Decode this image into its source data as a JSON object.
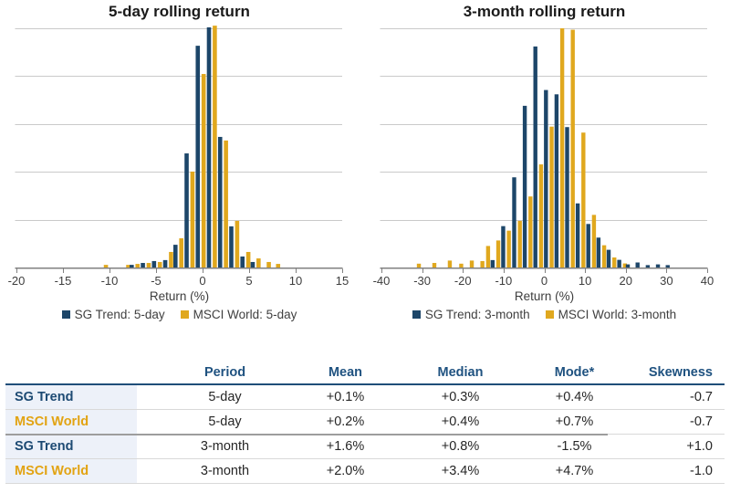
{
  "colors": {
    "navy": "#1d4669",
    "gold": "#e0a81e",
    "grid": "#cacaca",
    "axis": "#808080",
    "tick_text": "#3d3d3d",
    "title_text": "#1a1a1a",
    "table_header_text": "#1f5280",
    "header_rule": "#1f4e79",
    "row_label_bg": "#edf1f9",
    "row_border": "#d9d9d9",
    "group_divider": "#9d9d9d"
  },
  "chart_data": [
    {
      "type": "bar",
      "title": "5-day rolling return",
      "xlabel": "Return (%)",
      "ylabel": "",
      "y_axis_labels": "none",
      "y_note": "relative frequency, bar heights in % of plot height (no y tick labels shown)",
      "xlim": [
        -20,
        15
      ],
      "ylim": [
        0,
        100
      ],
      "x_ticks": [
        -20,
        -15,
        -10,
        -5,
        0,
        5,
        10,
        15
      ],
      "gridlines": 5,
      "legend_position": "bottom",
      "x": [
        -10.7,
        -8.3,
        -7.3,
        -6.1,
        -4.9,
        -3.7,
        -2.6,
        -1.4,
        -0.2,
        1.0,
        2.2,
        3.4,
        4.6,
        5.7,
        6.8,
        7.8
      ],
      "series": [
        {
          "name": "SG Trend: 5-day",
          "color": "#1d4669",
          "values": [
            0,
            0,
            1.1,
            1.9,
            2.7,
            3.1,
            9.5,
            47.7,
            92.7,
            100.4,
            54.6,
            17.2,
            4.6,
            2.3,
            0,
            0
          ]
        },
        {
          "name": "MSCI World: 5-day",
          "color": "#e0a81e",
          "values": [
            1.1,
            1.1,
            1.5,
            1.9,
            2.3,
            6.5,
            12.2,
            40.1,
            80.9,
            101.1,
            53.1,
            19.5,
            6.5,
            3.8,
            2.3,
            1.5
          ]
        }
      ]
    },
    {
      "type": "bar",
      "title": "3-month rolling return",
      "xlabel": "Return (%)",
      "ylabel": "",
      "y_axis_labels": "none",
      "y_note": "relative frequency, bar heights in % of plot height (no y tick labels shown)",
      "xlim": [
        -40,
        40
      ],
      "ylim": [
        0,
        100
      ],
      "x_ticks": [
        -40,
        -30,
        -20,
        -10,
        0,
        10,
        20,
        30,
        40
      ],
      "gridlines": 5,
      "legend_position": "bottom",
      "x": [
        -31.5,
        -27.7,
        -23.9,
        -21.1,
        -18.5,
        -15.9,
        -14.5,
        -12.0,
        -9.4,
        -6.7,
        -4.1,
        -1.5,
        1.1,
        3.7,
        6.3,
        8.9,
        11.5,
        14.0,
        16.5,
        19.1,
        21.2,
        23.6,
        26.1,
        28.6,
        31.0
      ],
      "series": [
        {
          "name": "SG Trend: 3-month",
          "color": "#1d4669",
          "values": [
            0,
            0,
            0,
            0,
            0,
            0,
            0,
            3.1,
            17.3,
            37.7,
            67.6,
            92.4,
            74.2,
            72.4,
            58.7,
            26.8,
            18.2,
            12.5,
            7.4,
            3.2,
            1.3,
            2.1,
            1.0,
            1.3,
            1.0
          ]
        },
        {
          "name": "MSCI World: 3-month",
          "color": "#e0a81e",
          "values": [
            1.6,
            1.9,
            2.9,
            1.6,
            2.9,
            2.7,
            9.0,
            11.3,
            15.4,
            19.5,
            29.7,
            43.1,
            58.9,
            100.0,
            99.4,
            56.4,
            22.0,
            9.3,
            4.2,
            1.7,
            0,
            0,
            0,
            0,
            0
          ]
        }
      ]
    }
  ],
  "table": {
    "columns": [
      "",
      "Period",
      "Mean",
      "Median",
      "Mode*",
      "Skewness"
    ],
    "rows": [
      {
        "name": "SG Trend",
        "series": "sg",
        "values": [
          "5-day",
          "+0.1%",
          "+0.3%",
          "+0.4%",
          "-0.7"
        ]
      },
      {
        "name": "MSCI World",
        "series": "msci",
        "values": [
          "5-day",
          "+0.2%",
          "+0.4%",
          "+0.7%",
          "-0.7"
        ]
      },
      {
        "name": "SG Trend",
        "series": "sg",
        "values": [
          "3-month",
          "+1.6%",
          "+0.8%",
          "-1.5%",
          "+1.0"
        ]
      },
      {
        "name": "MSCI World",
        "series": "msci",
        "values": [
          "3-month",
          "+2.0%",
          "+3.4%",
          "+4.7%",
          "-1.0"
        ]
      }
    ]
  }
}
